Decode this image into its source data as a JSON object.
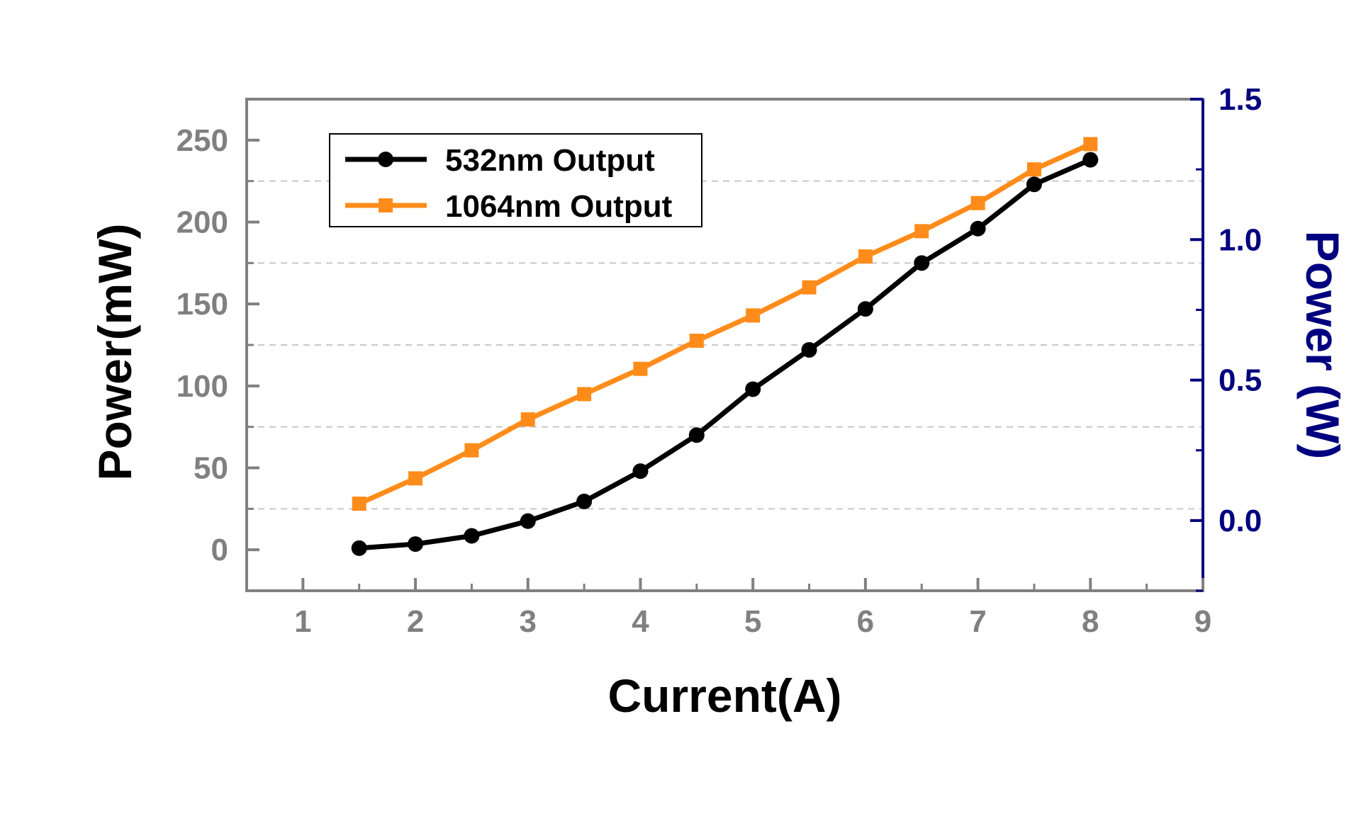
{
  "chart_data": {
    "type": "line",
    "xlabel": "Current(A)",
    "ylabel": "Power(mW)",
    "y2label": "Power (W)",
    "xlim": [
      0.5,
      9
    ],
    "ylim": [
      -25,
      275
    ],
    "y2lim": [
      -0.25,
      1.5
    ],
    "x_ticks": [
      "1",
      "2",
      "3",
      "4",
      "5",
      "6",
      "7",
      "8",
      "9"
    ],
    "y_ticks": [
      "0",
      "50",
      "100",
      "150",
      "200",
      "250"
    ],
    "y2_ticks": [
      "0.0",
      "0.5",
      "1.0",
      "1.5"
    ],
    "grid": "horizontal dashed",
    "legend_position": "top-left",
    "series": [
      {
        "name": "532nm  Output",
        "axis": "left",
        "color": "#000000",
        "marker": "circle",
        "x": [
          1.5,
          2,
          2.5,
          3,
          3.5,
          4,
          4.5,
          5,
          5.5,
          6,
          6.5,
          7,
          7.5,
          8
        ],
        "y": [
          1,
          3.5,
          8.5,
          17.5,
          29.5,
          48,
          70,
          98,
          122,
          147,
          175,
          196,
          223,
          238
        ]
      },
      {
        "name": "1064nm Output",
        "axis": "right",
        "color": "#ff8c1a",
        "marker": "square",
        "x": [
          1.5,
          2,
          2.5,
          3,
          3.5,
          4,
          4.5,
          5,
          5.5,
          6,
          6.5,
          7,
          7.5,
          8
        ],
        "y": [
          0.06,
          0.15,
          0.25,
          0.36,
          0.45,
          0.54,
          0.64,
          0.73,
          0.83,
          0.94,
          1.03,
          1.13,
          1.25,
          1.34
        ]
      }
    ]
  }
}
